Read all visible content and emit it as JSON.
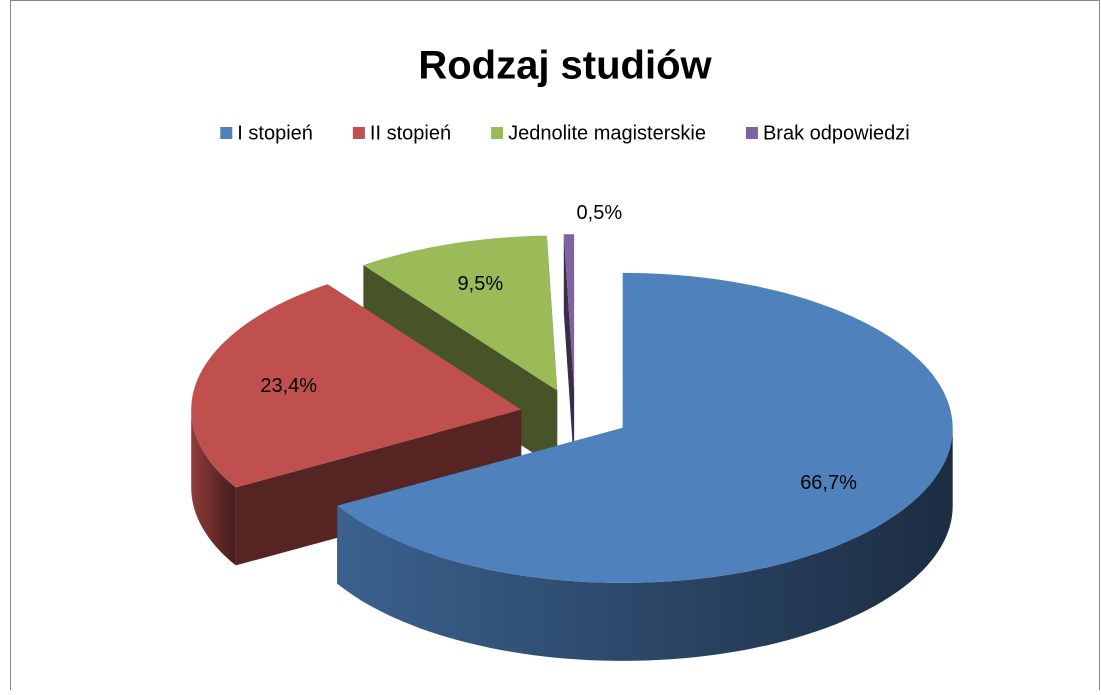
{
  "chart_data": {
    "type": "pie3d",
    "title": "Rodzaj studiów",
    "categories": [
      "I stopień",
      "II stopień",
      "Jednolite magisterskie",
      "Brak odpowiedzi"
    ],
    "values": [
      66.7,
      23.4,
      9.5,
      0.5
    ],
    "value_labels": [
      "66,7%",
      "23,4%",
      "9,5%",
      "0,5%"
    ],
    "colors": [
      "#4f81bd",
      "#c0504d",
      "#9bbb59",
      "#8064a2"
    ],
    "legend": "top"
  }
}
